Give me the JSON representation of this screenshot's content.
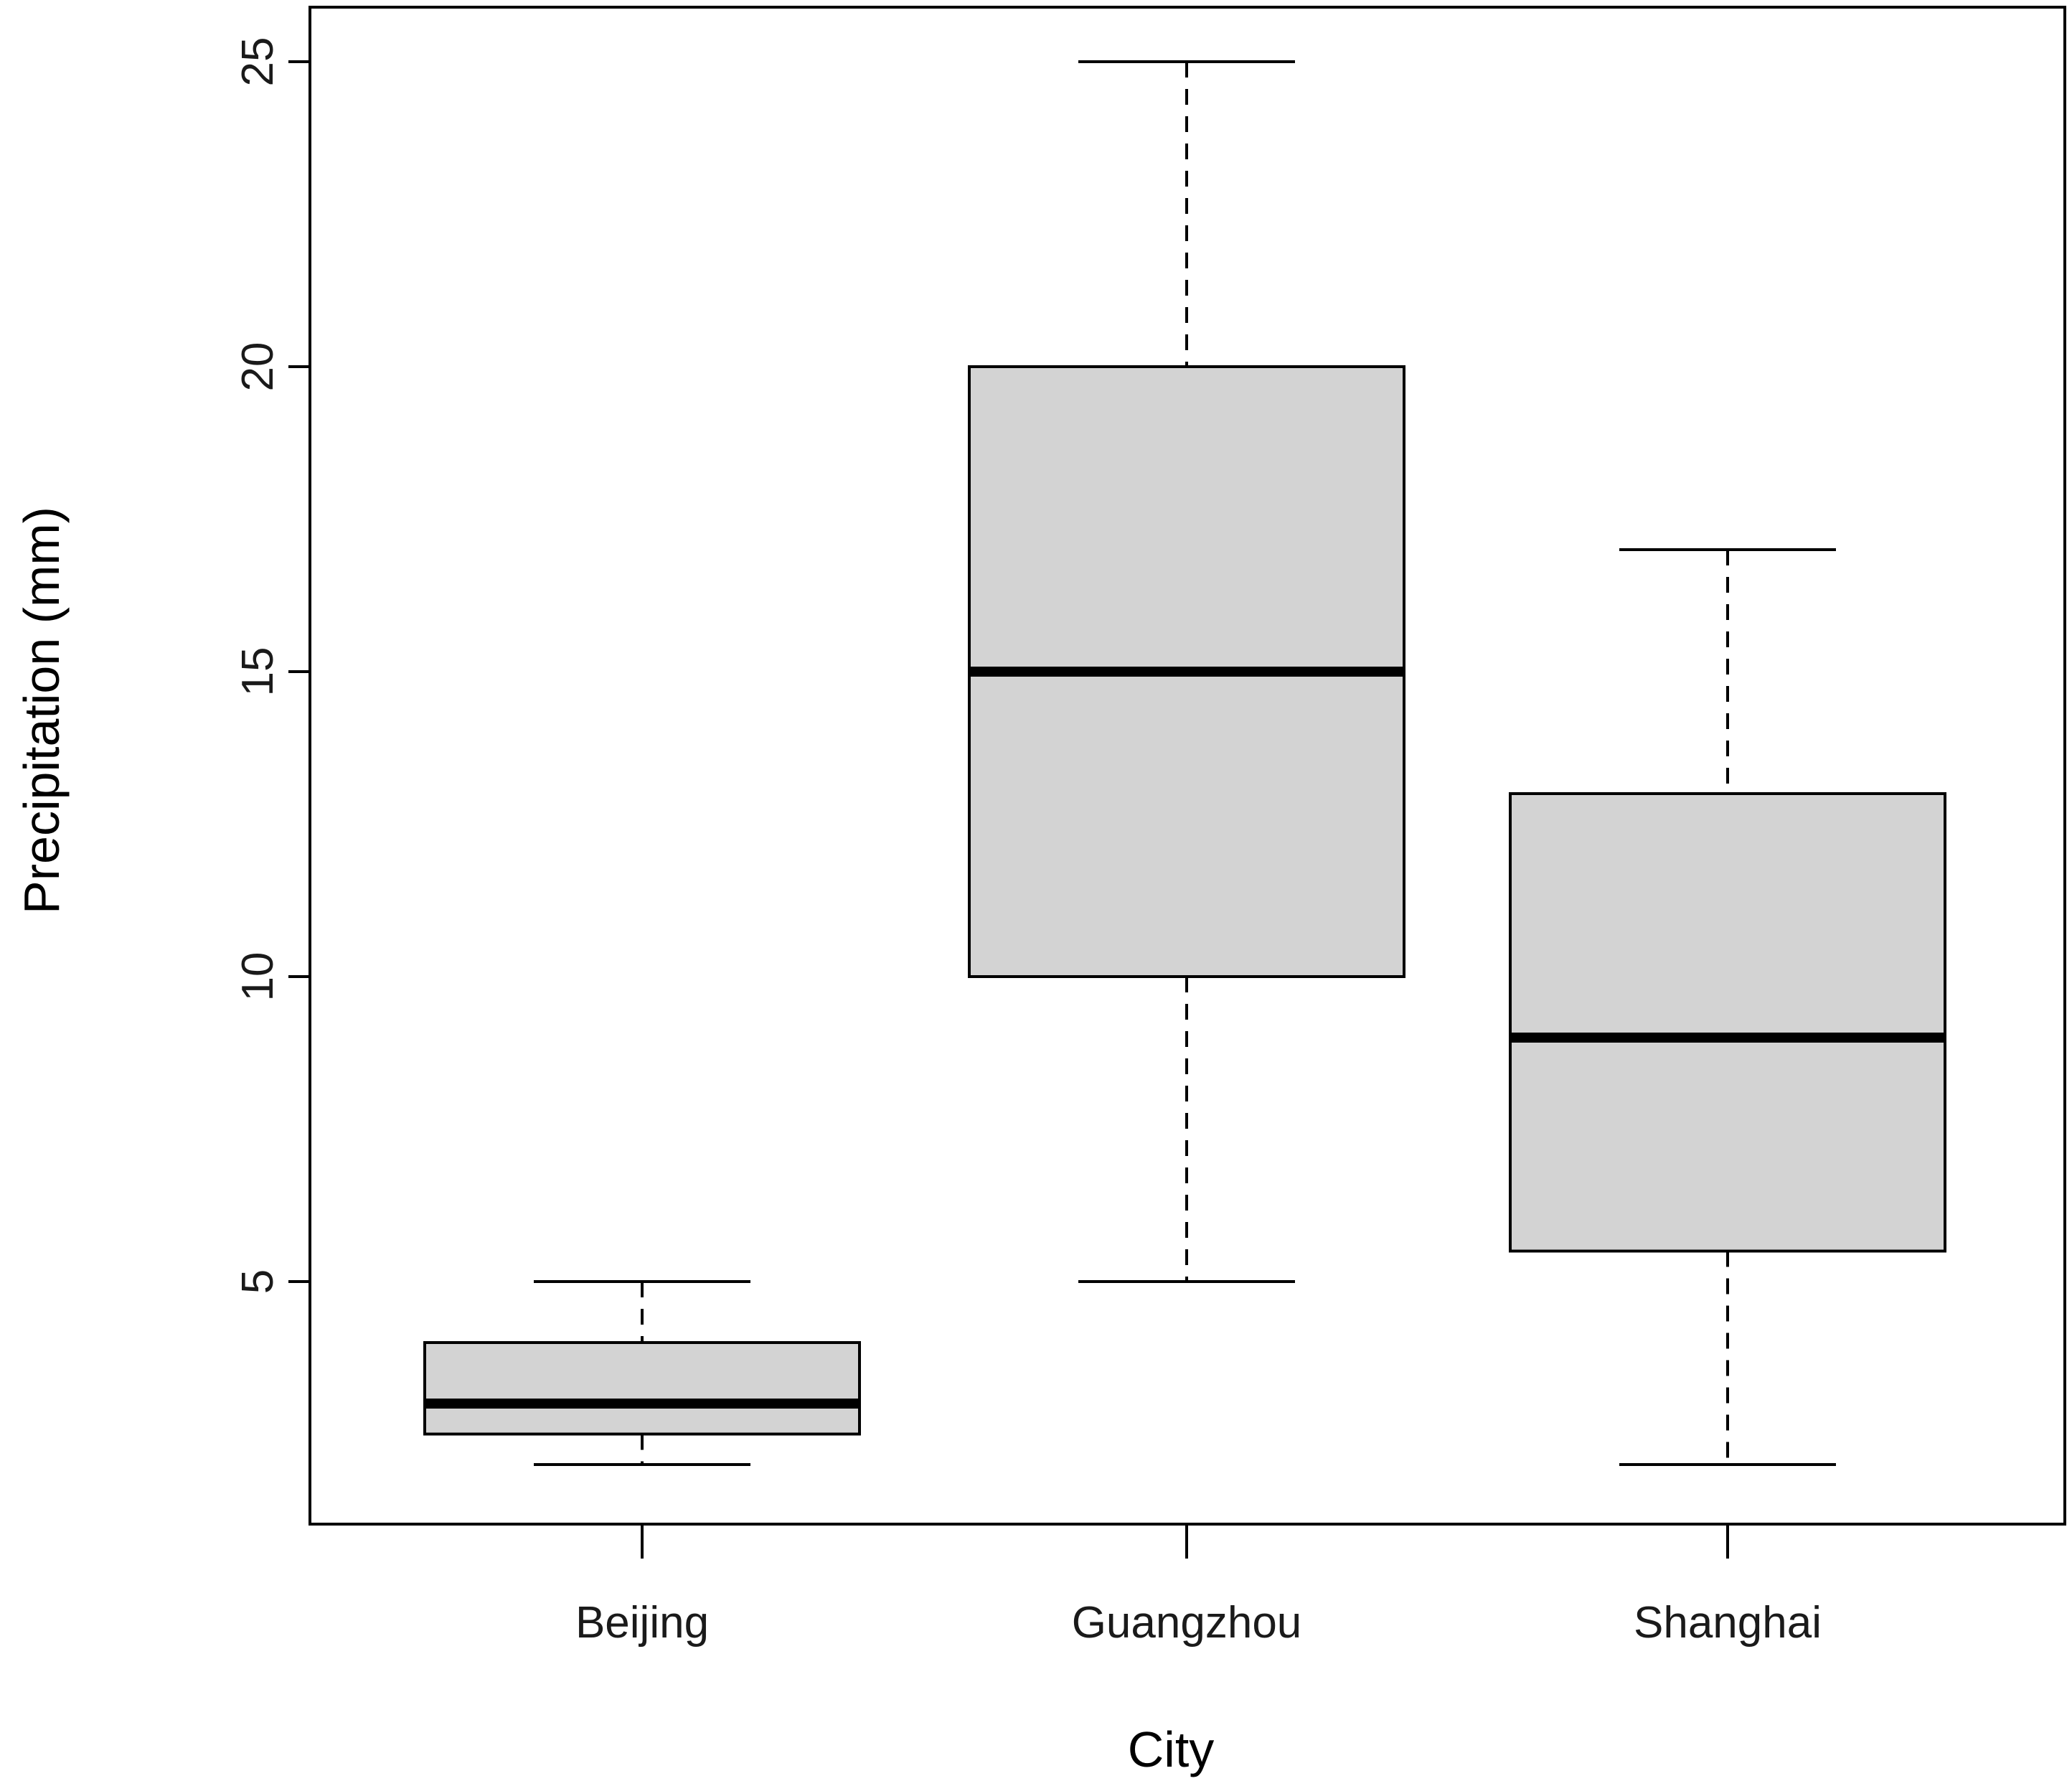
{
  "chart_data": {
    "type": "box",
    "title": "",
    "xlabel": "City",
    "ylabel": "Precipitation (mm)",
    "ylim": [
      1,
      26
    ],
    "yticks": [
      5,
      10,
      15,
      20,
      25
    ],
    "grid": false,
    "categories": [
      "Beijing",
      "Guangzhou",
      "Shanghai"
    ],
    "boxes": [
      {
        "category": "Beijing",
        "min": 2,
        "q1": 2.5,
        "median": 3,
        "q3": 4,
        "max": 5
      },
      {
        "category": "Guangzhou",
        "min": 5,
        "q1": 10,
        "median": 15,
        "q3": 20,
        "max": 25
      },
      {
        "category": "Shanghai",
        "min": 2,
        "q1": 5.5,
        "median": 9,
        "q3": 13,
        "max": 17
      }
    ],
    "box_fill": "#d3d3d3",
    "line_color": "#000000"
  }
}
